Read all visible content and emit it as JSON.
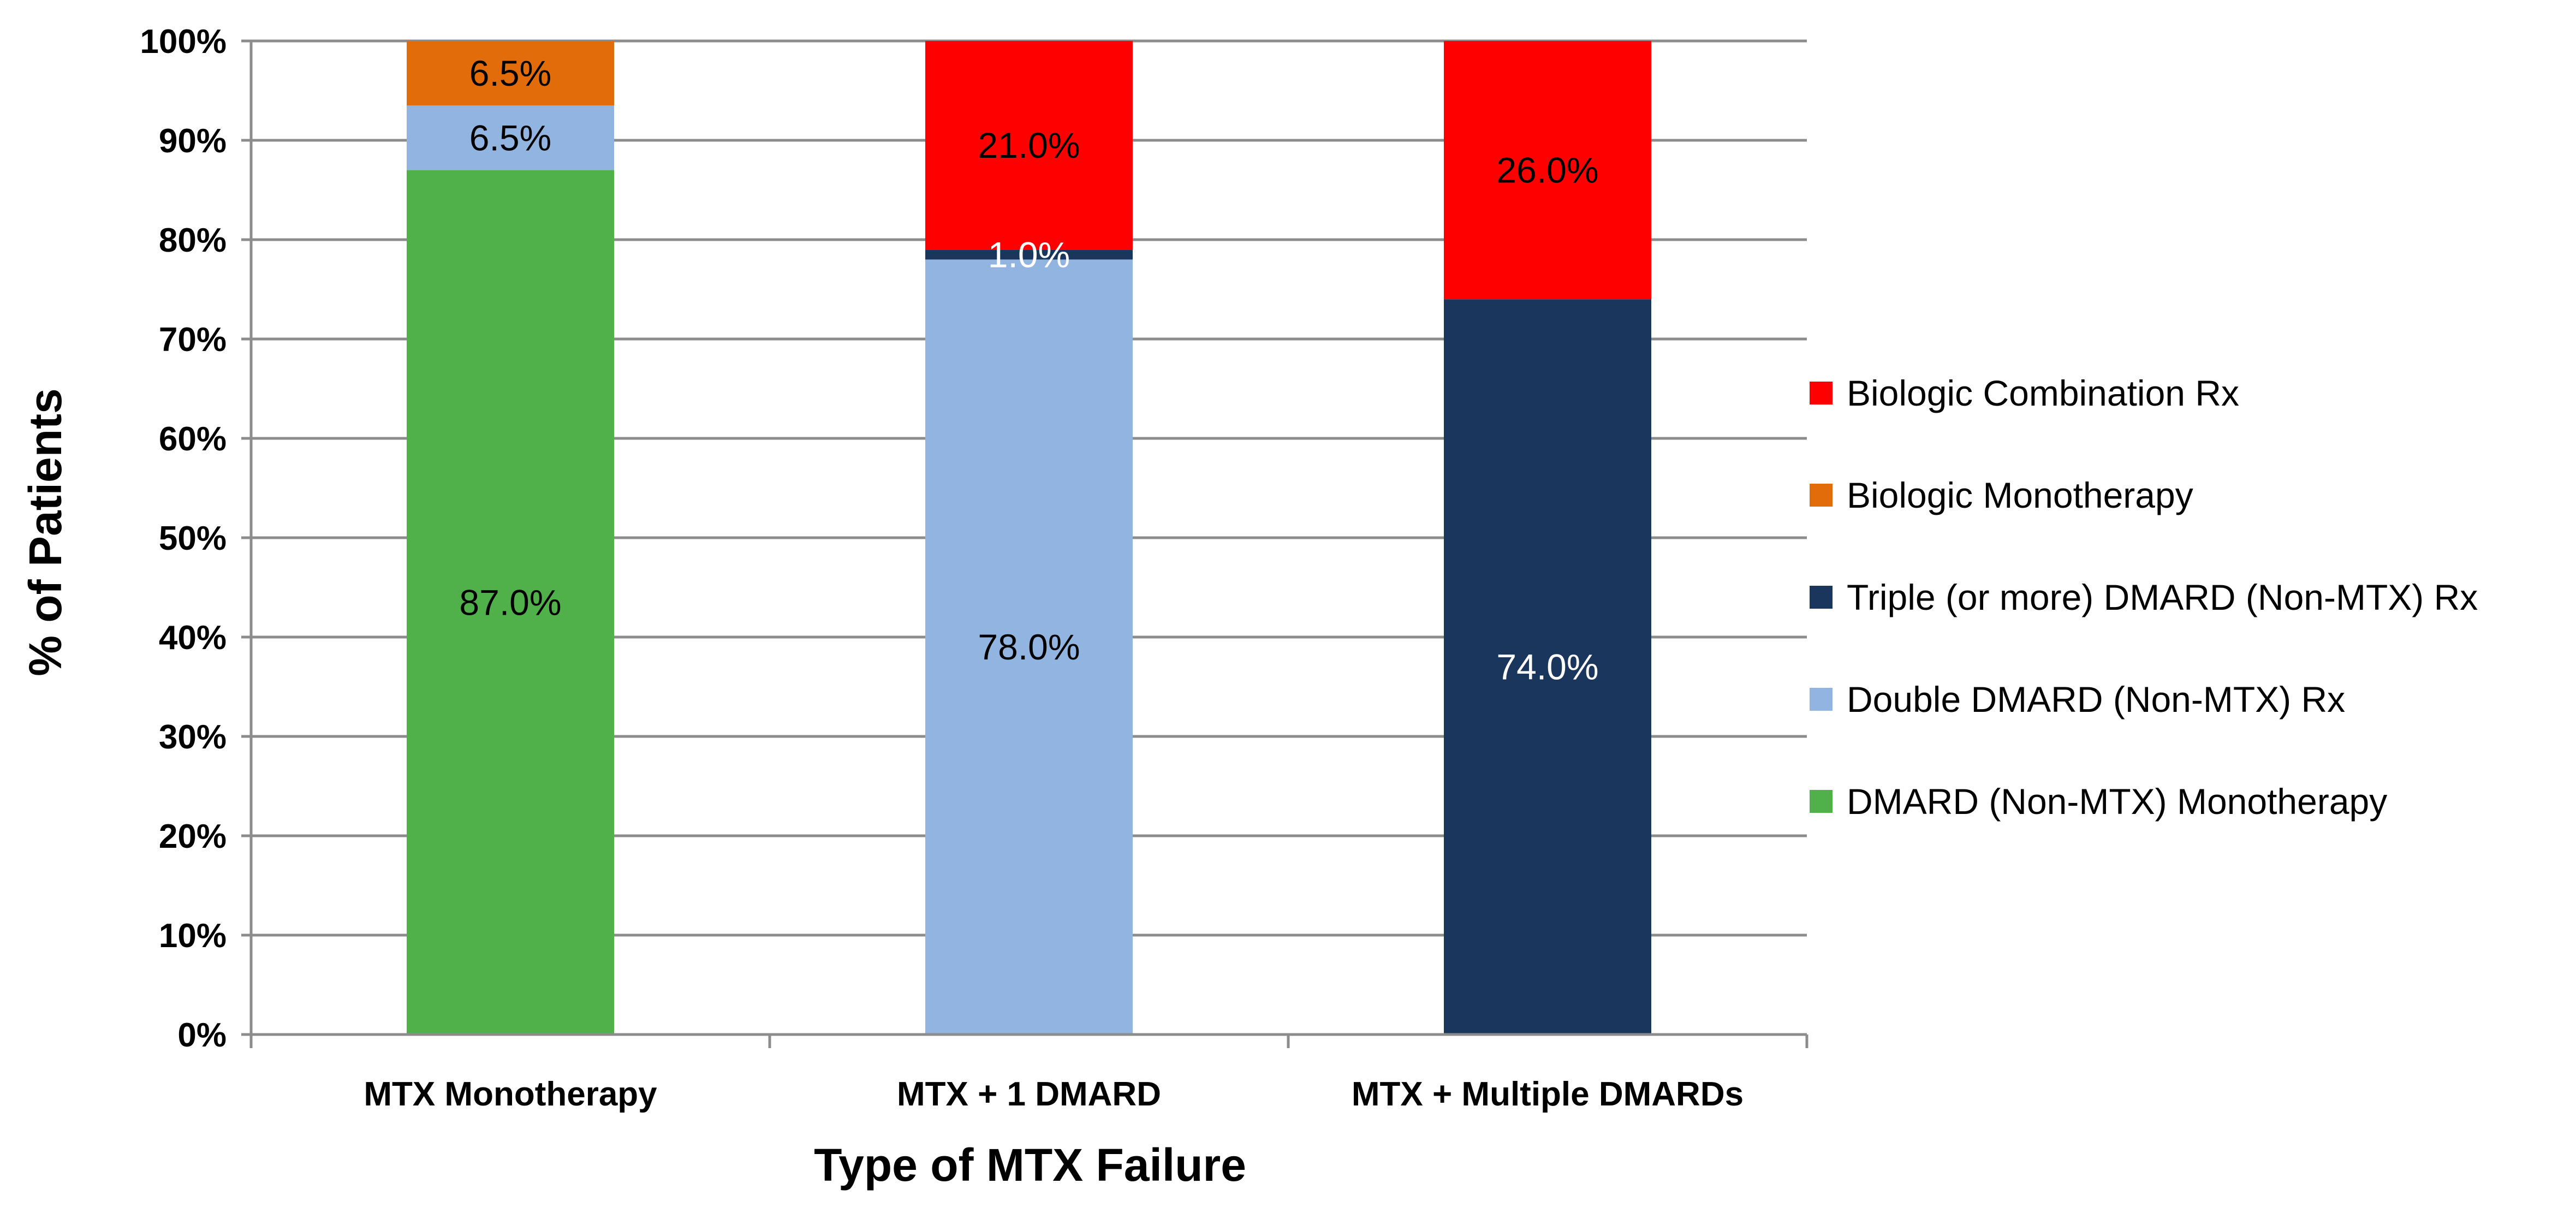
{
  "chart_data": {
    "type": "bar",
    "stacked": true,
    "title": "",
    "xlabel": "Type of MTX Failure",
    "ylabel": "% of Patients",
    "ylim": [
      0,
      100
    ],
    "yticks": [
      0,
      10,
      20,
      30,
      40,
      50,
      60,
      70,
      80,
      90,
      100
    ],
    "ytick_labels": [
      "0%",
      "10%",
      "20%",
      "30%",
      "40%",
      "50%",
      "60%",
      "70%",
      "80%",
      "90%",
      "100%"
    ],
    "grid": true,
    "legend_position": "right",
    "categories": [
      "MTX Monotherapy",
      "MTX + 1 DMARD",
      "MTX + Multiple DMARDs"
    ],
    "series": [
      {
        "name": "DMARD (Non-MTX) Monotherapy",
        "color": "#50b04a",
        "label_color": "#000000",
        "values": [
          87.0,
          0,
          0
        ],
        "labels": [
          "87.0%",
          "",
          ""
        ]
      },
      {
        "name": "Double DMARD (Non-MTX) Rx",
        "color": "#91b4e0",
        "label_color": "#000000",
        "values": [
          6.5,
          78.0,
          0
        ],
        "labels": [
          "6.5%",
          "78.0%",
          ""
        ]
      },
      {
        "name": "Triple (or more) DMARD (Non-MTX) Rx",
        "color": "#1a365d",
        "label_color": "#ffffff",
        "values": [
          0,
          1.0,
          74.0
        ],
        "labels": [
          "",
          "1.0%",
          "74.0%"
        ]
      },
      {
        "name": "Biologic Monotherapy",
        "color": "#e36c0a",
        "label_color": "#000000",
        "values": [
          6.5,
          0,
          0
        ],
        "labels": [
          "6.5%",
          "",
          ""
        ]
      },
      {
        "name": "Biologic Combination Rx",
        "color": "#ff0000",
        "label_color": "#000000",
        "values": [
          0,
          21.0,
          26.0
        ],
        "labels": [
          "",
          "21.0%",
          "26.0%"
        ]
      }
    ],
    "legend_order": [
      4,
      3,
      2,
      1,
      0
    ]
  }
}
